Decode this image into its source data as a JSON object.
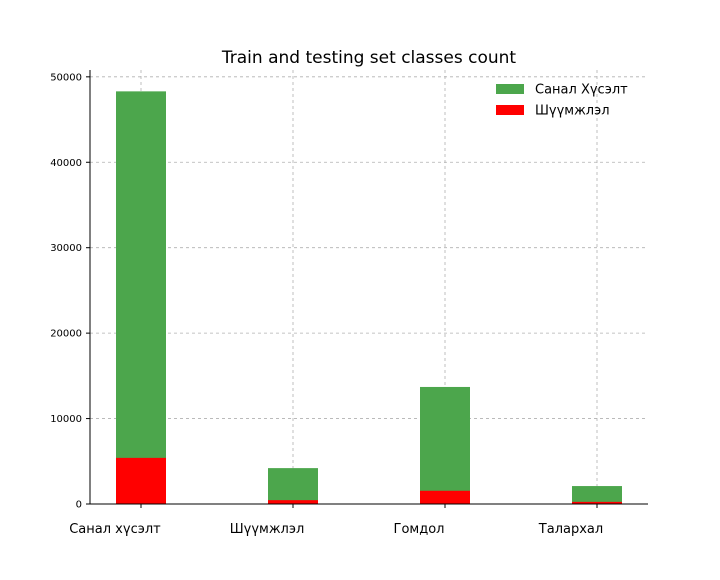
{
  "chart_data": {
    "type": "bar",
    "stacked": "overlay",
    "title": "Train and testing set classes count",
    "xlabel": "",
    "ylabel": "",
    "categories": [
      "Санал хүсэлт",
      "Шүүмжлэл",
      "Гомдол",
      "Талархал"
    ],
    "series": [
      {
        "name": "Санал Хүсэлт",
        "color": "#4ca64c",
        "values": [
          48300,
          4200,
          13700,
          2100
        ]
      },
      {
        "name": "Шүүмжлэл",
        "color": "#ff0000",
        "values": [
          5400,
          450,
          1550,
          250
        ]
      }
    ],
    "ylim": [
      0,
      50800
    ],
    "yticks": [
      0,
      10000,
      20000,
      30000,
      40000,
      50000
    ],
    "ytick_labels": [
      "0",
      "10000",
      "20000",
      "30000",
      "40000",
      "50000"
    ],
    "grid": true,
    "legend_position": "top-right"
  }
}
